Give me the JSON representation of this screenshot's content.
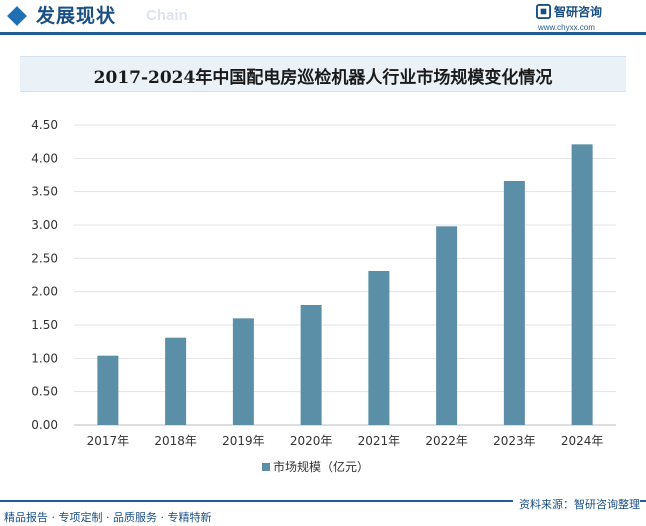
{
  "header": {
    "section_title": "发展现状",
    "section_sub": "Chain",
    "brand_name": "智研咨询",
    "brand_url": "www.chyxx.com",
    "accent": "#1f5e96"
  },
  "chart_data": {
    "type": "bar",
    "title": "2017-2024年中国配电房巡检机器人行业市场规模变化情况",
    "categories": [
      "2017年",
      "2018年",
      "2019年",
      "2020年",
      "2021年",
      "2022年",
      "2023年",
      "2024年"
    ],
    "series": [
      {
        "name": "市场规模（亿元）",
        "values": [
          1.04,
          1.31,
          1.6,
          1.8,
          2.31,
          2.98,
          3.66,
          4.21
        ],
        "color": "#5b8fa8"
      }
    ],
    "ylim": [
      0,
      4.5
    ],
    "yticks": [
      "0.00",
      "0.50",
      "1.00",
      "1.50",
      "2.00",
      "2.50",
      "3.00",
      "3.50",
      "4.00",
      "4.50"
    ],
    "xlabel": "",
    "ylabel": "",
    "grid": "horizontal",
    "legend": "bottom-center"
  },
  "footer": {
    "tagline": "精品报告 · 专项定制 · 品质服务 · 专精特新",
    "source": "资料来源：智研咨询整理"
  }
}
